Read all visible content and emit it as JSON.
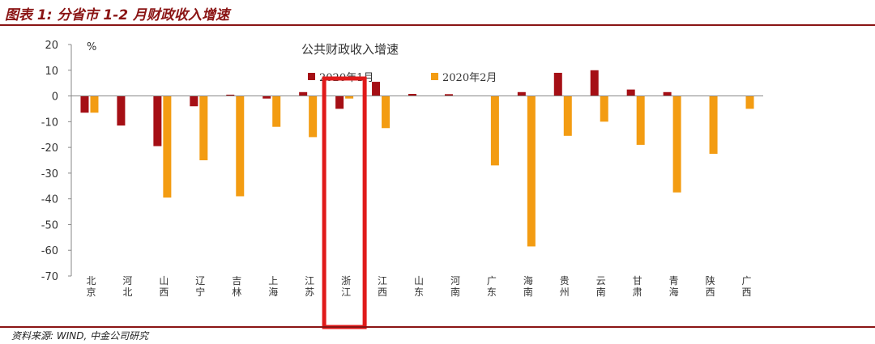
{
  "header": {
    "title": "图表 1:  分省市 1-2 月财政收入增速"
  },
  "footer": {
    "source": "资料来源:   WIND, 中金公司研究"
  },
  "colors": {
    "accent": "#8a1414",
    "series_jan": "#a50f15",
    "series_feb": "#f39c12",
    "highlight": "#e01a1a"
  },
  "chart_data": {
    "type": "bar",
    "title": "公共财政收入增速",
    "ylabel": "%",
    "xlabel": "",
    "ylim": [
      -70,
      20
    ],
    "yticks": [
      20,
      10,
      0,
      -10,
      -20,
      -30,
      -40,
      -50,
      -60,
      -70
    ],
    "categories": [
      "北京",
      "河北",
      "山西",
      "辽宁",
      "吉林",
      "上海",
      "江苏",
      "浙江",
      "江西",
      "山东",
      "河南",
      "广东",
      "海南",
      "贵州",
      "云南",
      "甘肃",
      "青海",
      "陕西",
      "广西"
    ],
    "series": [
      {
        "name": "2020年1月",
        "values": [
          -6.5,
          -11.5,
          -19.5,
          -4,
          0.5,
          -1,
          1.5,
          -5,
          5.5,
          0.8,
          0.7,
          0,
          1.5,
          9,
          10,
          2.5,
          1.5,
          0,
          0
        ]
      },
      {
        "name": "2020年2月",
        "values": [
          -6.5,
          0,
          -39.5,
          -25,
          -39,
          -12,
          -16,
          -1,
          -12.5,
          0,
          0,
          -27,
          -58.5,
          -15.5,
          -10,
          -19,
          -37.5,
          -22.5,
          -5
        ]
      }
    ],
    "legend_position": "top-center",
    "grid": false,
    "highlight_category": "浙江"
  }
}
